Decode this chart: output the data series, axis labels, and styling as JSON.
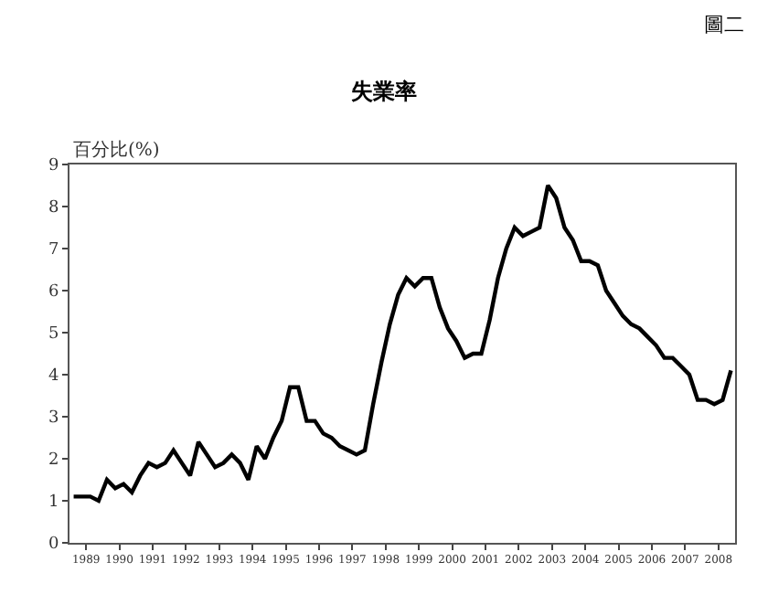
{
  "chart_data": {
    "type": "line",
    "title": "失業率",
    "ylabel": "百分比(%)",
    "annotations": [
      "圖二"
    ],
    "x": [
      1989.125,
      1989.375,
      1989.625,
      1989.875,
      1990.125,
      1990.375,
      1990.625,
      1990.875,
      1991.125,
      1991.375,
      1991.625,
      1991.875,
      1992.125,
      1992.375,
      1992.625,
      1992.875,
      1993.125,
      1993.375,
      1993.625,
      1993.875,
      1994.125,
      1994.375,
      1994.625,
      1994.875,
      1995.125,
      1995.375,
      1995.625,
      1995.875,
      1996.125,
      1996.375,
      1996.625,
      1996.875,
      1997.125,
      1997.375,
      1997.625,
      1997.875,
      1998.125,
      1998.375,
      1998.625,
      1998.875,
      1999.125,
      1999.375,
      1999.625,
      1999.875,
      2000.125,
      2000.375,
      2000.625,
      2000.875,
      2001.125,
      2001.375,
      2001.625,
      2001.875,
      2002.125,
      2002.375,
      2002.625,
      2002.875,
      2003.125,
      2003.375,
      2003.625,
      2003.875,
      2004.125,
      2004.375,
      2004.625,
      2004.875,
      2005.125,
      2005.375,
      2005.625,
      2005.875,
      2006.125,
      2006.375,
      2006.625,
      2006.875,
      2007.125,
      2007.375,
      2007.625,
      2007.875,
      2008.125,
      2008.375,
      2008.625,
      2008.875
    ],
    "series": [
      {
        "color": "#000000",
        "values": [
          1.1,
          1.1,
          1.1,
          1.0,
          1.5,
          1.3,
          1.4,
          1.2,
          1.6,
          1.9,
          1.8,
          1.9,
          2.2,
          1.9,
          1.6,
          2.4,
          2.1,
          1.8,
          1.9,
          2.1,
          1.9,
          1.5,
          2.3,
          2.0,
          2.5,
          2.9,
          3.7,
          3.7,
          2.9,
          2.9,
          2.6,
          2.5,
          2.3,
          2.2,
          2.1,
          2.2,
          3.3,
          4.3,
          5.2,
          5.9,
          6.3,
          6.1,
          6.3,
          6.3,
          5.6,
          5.1,
          4.8,
          4.4,
          4.5,
          4.5,
          5.3,
          6.3,
          7.0,
          7.5,
          7.3,
          7.4,
          7.5,
          8.5,
          8.2,
          7.5,
          7.2,
          6.7,
          6.7,
          6.6,
          6.0,
          5.7,
          5.4,
          5.2,
          5.1,
          4.9,
          4.7,
          4.4,
          4.4,
          4.2,
          4.0,
          3.4,
          3.4,
          3.3,
          3.4,
          4.1
        ]
      }
    ],
    "xlim": [
      1989,
      2009
    ],
    "xticks": [
      {
        "value": 1989.5,
        "label": "1989"
      },
      {
        "value": 1990.5,
        "label": "1990"
      },
      {
        "value": 1991.5,
        "label": "1991"
      },
      {
        "value": 1992.5,
        "label": "1992"
      },
      {
        "value": 1993.5,
        "label": "1993"
      },
      {
        "value": 1994.5,
        "label": "1994"
      },
      {
        "value": 1995.5,
        "label": "1995"
      },
      {
        "value": 1996.5,
        "label": "1996"
      },
      {
        "value": 1997.5,
        "label": "1997"
      },
      {
        "value": 1998.5,
        "label": "1998"
      },
      {
        "value": 1999.5,
        "label": "1999"
      },
      {
        "value": 2000.5,
        "label": "2000"
      },
      {
        "value": 2001.5,
        "label": "2001"
      },
      {
        "value": 2002.5,
        "label": "2002"
      },
      {
        "value": 2003.5,
        "label": "2003"
      },
      {
        "value": 2004.5,
        "label": "2004"
      },
      {
        "value": 2005.5,
        "label": "2005"
      },
      {
        "value": 2006.5,
        "label": "2006"
      },
      {
        "value": 2007.5,
        "label": "2007"
      },
      {
        "value": 2008.5,
        "label": "2008"
      }
    ],
    "ylim": [
      0,
      9
    ],
    "yticks": [
      0,
      1,
      2,
      3,
      4,
      5,
      6,
      7,
      8,
      9
    ],
    "legend": false,
    "marker": "none",
    "line_style": "solid"
  }
}
